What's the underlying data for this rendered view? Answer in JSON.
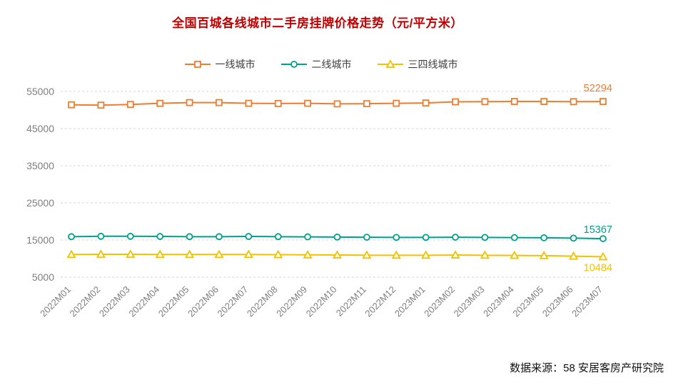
{
  "source": "数据来源：58 安居客房产研究院",
  "colors": {
    "title": "#C00000",
    "axis_labels": "#7F7F7F",
    "gridline": "#D6D6D6",
    "tier1_orange": "#ED7D31",
    "tier2_teal": "#00A08B",
    "tier3_yellow": "#F2C100"
  },
  "chart_data": {
    "type": "line",
    "title": "全国百城各线城市二手房挂牌价格走势（元/平方米）",
    "categories": [
      "2022M01",
      "2022M02",
      "2022M03",
      "2022M04",
      "2022M05",
      "2022M06",
      "2022M07",
      "2022M08",
      "2022M09",
      "2022M10",
      "2022M11",
      "2022M12",
      "2023M01",
      "2023M02",
      "2023M03",
      "2023M04",
      "2023M05",
      "2023M06",
      "2023M07"
    ],
    "series": [
      {
        "name": "一线城市",
        "marker": "square",
        "color": "#ED7D31",
        "values": [
          51400,
          51300,
          51500,
          51800,
          52000,
          52000,
          51800,
          51750,
          51800,
          51650,
          51700,
          51800,
          51900,
          52200,
          52250,
          52300,
          52300,
          52250,
          52294
        ],
        "end_label": "52294"
      },
      {
        "name": "二线城市",
        "marker": "circle",
        "color": "#00A08B",
        "values": [
          15900,
          16000,
          16000,
          15950,
          15900,
          15900,
          15950,
          15900,
          15850,
          15800,
          15750,
          15700,
          15700,
          15750,
          15700,
          15650,
          15600,
          15500,
          15367
        ],
        "end_label": "15367"
      },
      {
        "name": "三四线城市",
        "marker": "triangle",
        "color": "#F2C100",
        "values": [
          11100,
          11150,
          11150,
          11100,
          11100,
          11100,
          11100,
          11050,
          11000,
          10950,
          10900,
          10900,
          10900,
          10950,
          10900,
          10850,
          10800,
          10650,
          10484
        ],
        "end_label": "10484"
      }
    ],
    "ylim": [
      5000,
      55000
    ],
    "yticks": [
      5000,
      15000,
      25000,
      35000,
      45000,
      55000
    ],
    "grid": true,
    "legend_position": "top",
    "x_label_rotation": -45,
    "xlabel": "",
    "ylabel": ""
  }
}
